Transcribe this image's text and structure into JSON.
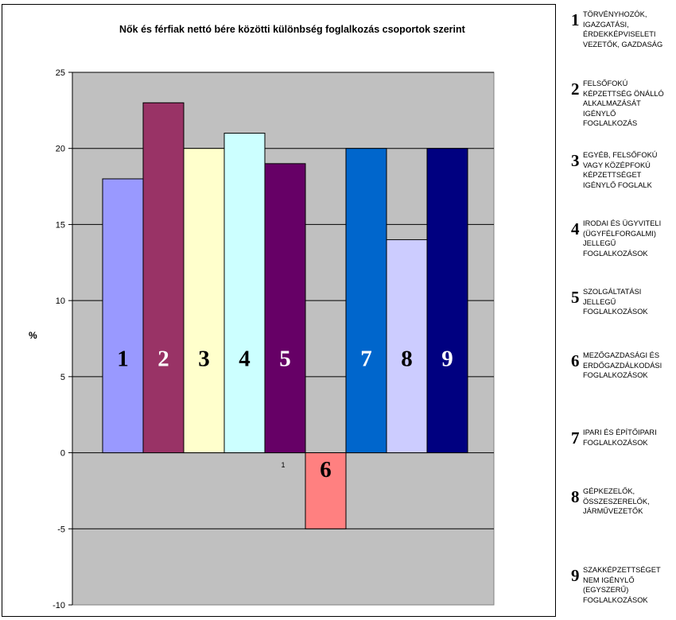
{
  "chart_data": {
    "type": "bar",
    "title": "Nők és férfiak nettó bére közötti különbség foglalkozás csoportok szerint",
    "xlabel": "",
    "ylabel": "%",
    "ylim": [
      -10,
      25
    ],
    "yticks": [
      -10,
      -5,
      0,
      5,
      10,
      15,
      20,
      25
    ],
    "x_tick_labels": [
      "1"
    ],
    "grid": true,
    "legend_position": "right",
    "categories": [
      "1",
      "2",
      "3",
      "4",
      "5",
      "6",
      "7",
      "8",
      "9"
    ],
    "values": [
      18,
      23,
      20,
      21,
      19,
      -5,
      20,
      14,
      20
    ],
    "colors": [
      "#9999ff",
      "#993366",
      "#ffffcc",
      "#ccffff",
      "#660066",
      "#ff8080",
      "#0066cc",
      "#ccccff",
      "#000080"
    ],
    "bar_label_colors": [
      "#000000",
      "#ffffff",
      "#000000",
      "#000000",
      "#ffffff",
      "#000000",
      "#ffffff",
      "#000000",
      "#ffffff"
    ],
    "plot_background": "#c0c0c0"
  },
  "legend": [
    {
      "num": "1",
      "text": [
        "TÖRVÉNYHOZÓK,",
        "IGAZGATÁSI,",
        "ÉRDEKKÉPVISELETI",
        "VEZETŐK, GAZDASÁG"
      ]
    },
    {
      "num": "2",
      "text": [
        "FELSŐFOKÚ",
        "KÉPZETTSÉG ÖNÁLLÓ",
        "ALKALMAZÁSÁT",
        "IGÉNYLŐ",
        "FOGLALKOZÁS"
      ]
    },
    {
      "num": "3",
      "text": [
        "EGYÉB, FELSŐFOKÚ",
        "VAGY KÖZÉPFOKÚ",
        "KÉPZETTSÉGET",
        "IGÉNYLŐ FOGLALK"
      ]
    },
    {
      "num": "4",
      "text": [
        "IRODAI ÉS ÜGYVITELI",
        "(ÜGYFÉLFORGALMI)",
        "JELLEGŰ",
        "FOGLALKOZÁSOK"
      ]
    },
    {
      "num": "5",
      "text": [
        "SZOLGÁLTATÁSI",
        "JELLEGŰ",
        "FOGLALKOZÁSOK"
      ]
    },
    {
      "num": "6",
      "text": [
        "MEZŐGAZDASÁGI ÉS",
        "ERDŐGAZDÁLKODÁSI",
        "FOGLALKOZÁSOK"
      ]
    },
    {
      "num": "7",
      "text": [
        "IPARI ÉS ÉPÍTŐIPARI",
        "FOGLALKOZÁSOK"
      ]
    },
    {
      "num": "8",
      "text": [
        "GÉPKEZELŐK,",
        "ÖSSZESZERELŐK,",
        "JÁRMŰVEZETŐK"
      ]
    },
    {
      "num": "9",
      "text": [
        "SZAKKÉPZETTSÉGET",
        "NEM IGÉNYLŐ",
        "(EGYSZERŰ)",
        "FOGLALKOZÁSOK"
      ]
    }
  ]
}
